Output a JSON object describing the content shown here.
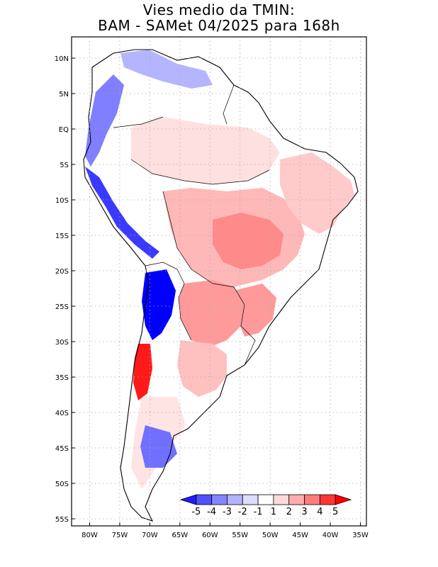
{
  "title": {
    "line1": "Vies medio da TMIN:",
    "line2": "BAM - SAMet 04/2025  para 168h"
  },
  "axes": {
    "lat_labels": [
      "10N",
      "5N",
      "EQ",
      "5S",
      "10S",
      "15S",
      "20S",
      "25S",
      "30S",
      "35S",
      "40S",
      "45S",
      "50S",
      "55S"
    ],
    "lat_values": [
      10,
      5,
      0,
      -5,
      -10,
      -15,
      -20,
      -25,
      -30,
      -35,
      -40,
      -45,
      -50,
      -55
    ],
    "lon_labels": [
      "80W",
      "75W",
      "70W",
      "65W",
      "60W",
      "55W",
      "50W",
      "45W",
      "40W",
      "35W"
    ],
    "lon_values": [
      -80,
      -75,
      -70,
      -65,
      -60,
      -55,
      -50,
      -45,
      -40,
      -35
    ],
    "lat_range": [
      -56,
      13
    ],
    "lon_range": [
      -83,
      -34
    ]
  },
  "colorbar": {
    "labels": [
      "-5",
      "-4",
      "-3",
      "-2",
      "-1",
      "1",
      "2",
      "3",
      "4",
      "5"
    ],
    "colors": [
      "#1d1dff",
      "#5050ff",
      "#8484ff",
      "#b3b3ff",
      "#dcdcff",
      "#ffffff",
      "#ffdada",
      "#ffadad",
      "#ff7c7c",
      "#ff3535",
      "#ff0000"
    ]
  },
  "colors": {
    "coast": "#000000",
    "grid": "#aaaaaa",
    "strong_cold": "#0000ff",
    "strong_warm": "#ff1010"
  }
}
